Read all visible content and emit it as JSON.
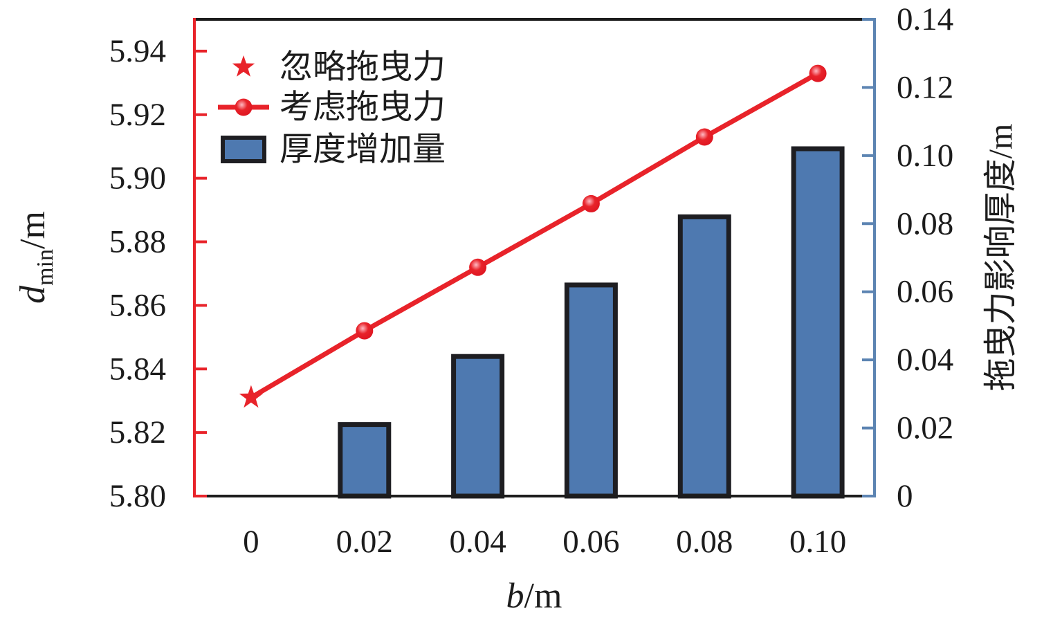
{
  "chart_data": {
    "type": "combo",
    "title": "",
    "x": {
      "label_var": "b",
      "label_unit": "/m",
      "categories": [
        "0",
        "0.02",
        "0.04",
        "0.06",
        "0.08",
        "0.10"
      ]
    },
    "left_axis": {
      "label_var": "d",
      "label_sub": "min",
      "label_unit": "/m",
      "ticks": [
        "5.80",
        "5.82",
        "5.84",
        "5.86",
        "5.88",
        "5.90",
        "5.92",
        "5.94"
      ],
      "range": [
        5.8,
        5.95
      ],
      "color": "#E8232A"
    },
    "right_axis": {
      "label": "拖曳力影响厚度/m",
      "ticks": [
        "0",
        "0.02",
        "0.04",
        "0.06",
        "0.08",
        "0.10",
        "0.12",
        "0.14"
      ],
      "range": [
        0,
        0.14
      ],
      "color": "#5C84B2"
    },
    "legend_position": "top-left",
    "grid": false,
    "series": [
      {
        "name": "忽略拖曳力",
        "type": "scatter",
        "marker": "star",
        "axis": "left",
        "points": [
          {
            "x": "0",
            "y": 5.831
          }
        ]
      },
      {
        "name": "考虑拖曳力",
        "type": "line",
        "marker": "circle",
        "axis": "left",
        "x": [
          "0",
          "0.02",
          "0.04",
          "0.06",
          "0.08",
          "0.10"
        ],
        "values": [
          5.831,
          5.852,
          5.872,
          5.892,
          5.913,
          5.933
        ],
        "markers_at": [
          1,
          2,
          3,
          4,
          5
        ]
      },
      {
        "name": "厚度增加量",
        "type": "bar",
        "axis": "right",
        "x": [
          "0.02",
          "0.04",
          "0.06",
          "0.08",
          "0.10"
        ],
        "values": [
          0.021,
          0.041,
          0.062,
          0.082,
          0.102
        ]
      }
    ],
    "colors": {
      "red": "#E8232A",
      "marker_highlight": "#FFB9C2",
      "marker_edge": "#DD1420",
      "bar_fill": "#4E79B0",
      "bar_border": "#1E1E22",
      "black": "#1C1C1C"
    }
  }
}
